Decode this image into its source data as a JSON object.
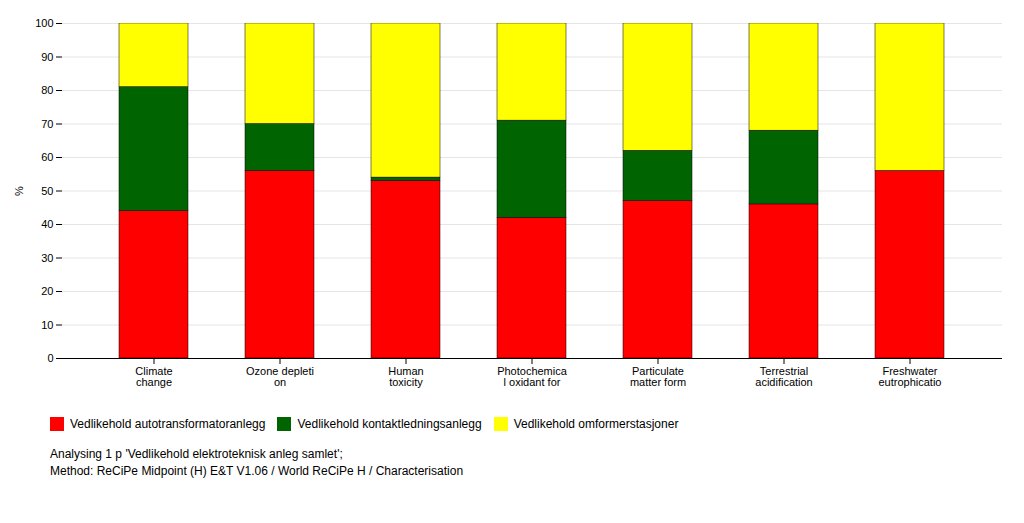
{
  "chart_data": {
    "type": "bar",
    "stacked": true,
    "categories": [
      "Climate\nchange",
      "Ozone depleti\non",
      "Human\ntoxicity",
      "Photochemica\nl oxidant for",
      "Particulate\nmatter form",
      "Terrestrial\nacidification",
      "Freshwater\neutrophicatio"
    ],
    "series": [
      {
        "name": "Vedlikehold autotransformatoranlegg",
        "color": "#FF0000",
        "values": [
          44,
          56,
          53,
          42,
          47,
          46,
          56
        ]
      },
      {
        "name": "Vedlikehold kontaktledningsanlegg",
        "color": "#006400",
        "values": [
          37,
          14,
          1,
          29,
          15,
          22,
          0
        ]
      },
      {
        "name": "Vedlikehold omformerstasjoner",
        "color": "#FFFF00",
        "values": [
          19,
          30,
          46,
          29,
          38,
          32,
          44
        ]
      }
    ],
    "ylabel": "%",
    "ylim": [
      0,
      100
    ],
    "yticks": [
      0,
      10,
      20,
      30,
      40,
      50,
      60,
      70,
      80,
      90,
      100
    ],
    "grid": true,
    "legend": "lower left",
    "annotations": [
      "Analysing 1 p 'Vedlikehold elektroteknisk anleg samlet';",
      "Method: ReCiPe Midpoint (H) E&T V1.06 / World ReCiPe H / Characterisation"
    ]
  }
}
